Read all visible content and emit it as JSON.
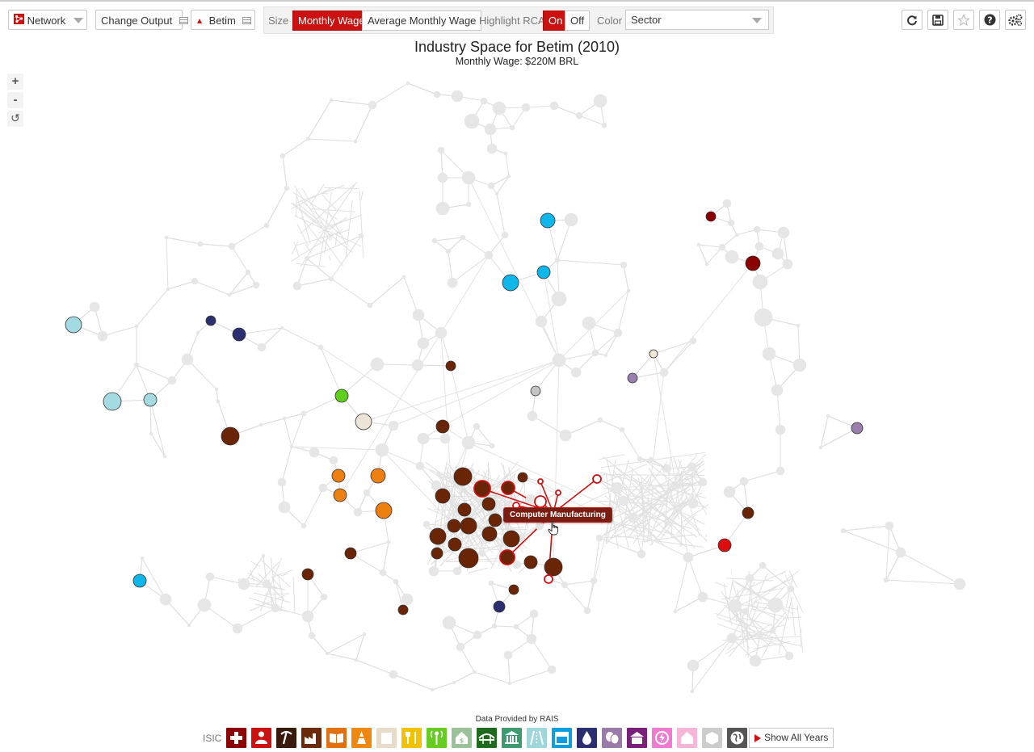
{
  "toolbar": {
    "app_label": "Network",
    "change_output_label": "Change Output",
    "location_label": "Betim",
    "size_label": "Size",
    "size_options": [
      "Monthly Wage",
      "Average Monthly Wage"
    ],
    "size_selected": "Monthly Wage",
    "highlight_label": "Highlight RCA",
    "highlight_on": "On",
    "highlight_off": "Off",
    "highlight_selected": "On",
    "color_label": "Color",
    "color_value": "Sector",
    "icons": [
      "refresh-icon",
      "save-icon",
      "star-icon",
      "help-icon",
      "settings-icon"
    ]
  },
  "title": "Industry Space for Betim (2010)",
  "subtitle": "Monthly Wage: $220M BRL",
  "zoom": {
    "in": "+",
    "out": "-",
    "reset": "↺"
  },
  "tooltip": "Computer Manufacturing",
  "footer": {
    "note": "Data Provided by RAIS",
    "classification": "ISIC",
    "show_all_years": "Show All Years",
    "sectors": [
      {
        "icon": "health-icon",
        "color": "#8b0000"
      },
      {
        "icon": "person-icon",
        "color": "#cc1111"
      },
      {
        "icon": "mining-icon",
        "color": "#3a1a0a"
      },
      {
        "icon": "factory-icon",
        "color": "#6b2a08"
      },
      {
        "icon": "book-icon",
        "color": "#e07010"
      },
      {
        "icon": "cone-icon",
        "color": "#ee8811"
      },
      {
        "icon": "building-icon",
        "color": "#e8dcc8"
      },
      {
        "icon": "food-icon",
        "color": "#f2c200"
      },
      {
        "icon": "antenna-icon",
        "color": "#66cc22"
      },
      {
        "icon": "money-house-icon",
        "color": "#99c299"
      },
      {
        "icon": "bridge-icon",
        "color": "#1e6b1e"
      },
      {
        "icon": "bank-icon",
        "color": "#3f9a6f"
      },
      {
        "icon": "road-icon",
        "color": "#9fd6dc"
      },
      {
        "icon": "store-icon",
        "color": "#0f9ee0"
      },
      {
        "icon": "water-icon",
        "color": "#2b2f70"
      },
      {
        "icon": "masks-icon",
        "color": "#9a7aa8"
      },
      {
        "icon": "school-icon",
        "color": "#7a1f7a"
      },
      {
        "icon": "energy-icon",
        "color": "#f07ad2"
      },
      {
        "icon": "house-icon",
        "color": "#f7b6d8"
      },
      {
        "icon": "box-icon",
        "color": "#cccccc"
      },
      {
        "icon": "globe-icon",
        "color": "#555555"
      }
    ]
  }
}
